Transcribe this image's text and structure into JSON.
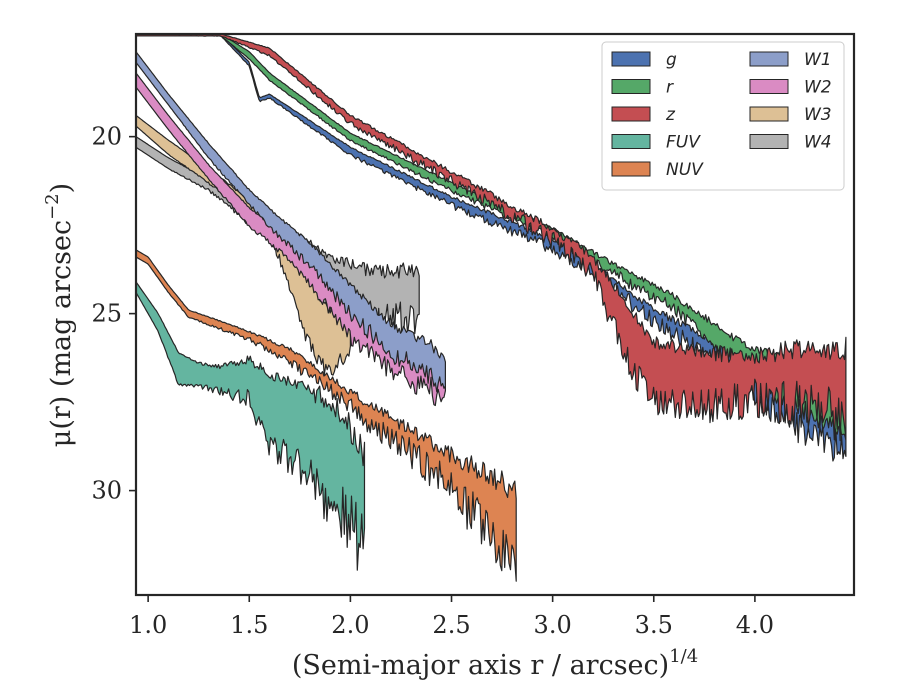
{
  "chart_data": {
    "type": "area",
    "title": "",
    "xlabel": "(Semi-major axis r / arcsec)",
    "xlabel_exponent": "1/4",
    "ylabel": "μ(r) (mag arcsec",
    "ylabel_exponent": "−2",
    "ylabel_close": ")",
    "xlim": [
      0.94,
      4.49
    ],
    "ylim": [
      32.95,
      17.1
    ],
    "y_inverted": true,
    "xticks": [
      1.0,
      1.5,
      2.0,
      2.5,
      3.0,
      3.5,
      4.0
    ],
    "xtick_labels": [
      "1.0",
      "1.5",
      "2.0",
      "2.5",
      "3.0",
      "3.5",
      "4.0"
    ],
    "yticks": [
      20,
      25,
      30
    ],
    "ytick_labels": [
      "20",
      "25",
      "30"
    ],
    "grid": false,
    "legend_position": "top-right",
    "legend_columns": 2,
    "series": [
      {
        "name": "g",
        "color": "#4c72b0",
        "noise": 0.7,
        "x": [
          0.94,
          1.36,
          1.5,
          1.55,
          1.6,
          2.0,
          2.5,
          3.0,
          3.25,
          3.5,
          3.75,
          3.95,
          4.1,
          4.3,
          4.45
        ],
        "y_upper": [
          17.1,
          17.1,
          17.9,
          18.9,
          18.8,
          20.3,
          21.7,
          22.9,
          23.8,
          24.9,
          25.6,
          26.4,
          26.6,
          26.8,
          27.0
        ],
        "y_lower": [
          17.15,
          17.15,
          18.0,
          19.0,
          18.9,
          20.5,
          21.9,
          23.1,
          24.0,
          25.1,
          25.9,
          26.9,
          27.6,
          28.4,
          28.6
        ]
      },
      {
        "name": "r",
        "color": "#55a868",
        "noise": 0.5,
        "x": [
          0.94,
          1.36,
          1.5,
          1.6,
          2.0,
          2.5,
          3.0,
          3.3,
          3.6,
          3.95,
          4.1,
          4.3,
          4.45
        ],
        "y_upper": [
          17.1,
          17.1,
          17.6,
          18.2,
          19.9,
          21.3,
          22.6,
          23.6,
          24.5,
          25.9,
          26.2,
          26.5,
          26.7
        ],
        "y_lower": [
          17.15,
          17.15,
          17.8,
          18.4,
          20.1,
          21.5,
          22.8,
          23.8,
          24.8,
          26.4,
          27.2,
          27.8,
          28.2
        ]
      },
      {
        "name": "z",
        "color": "#c44e52",
        "noise": 1.1,
        "x": [
          0.94,
          1.36,
          1.6,
          2.0,
          2.5,
          3.0,
          3.2,
          3.3,
          3.4,
          3.5,
          3.75,
          4.0,
          4.2,
          4.45
        ],
        "y_upper": [
          17.1,
          17.1,
          17.5,
          19.4,
          21.0,
          22.6,
          23.4,
          24.2,
          25.0,
          25.8,
          26.1,
          26.2,
          26.0,
          26.0
        ],
        "y_lower": [
          17.15,
          17.15,
          17.7,
          19.6,
          21.2,
          22.8,
          23.8,
          25.2,
          26.5,
          27.3,
          27.4,
          27.2,
          27.3,
          27.6
        ]
      },
      {
        "name": "FUV",
        "color": "#64b5a0",
        "noise": 1.6,
        "x": [
          0.94,
          1.05,
          1.15,
          1.25,
          1.35,
          1.5,
          1.6,
          1.7,
          1.8,
          1.9,
          2.0,
          2.07
        ],
        "y_upper": [
          24.1,
          25.0,
          26.1,
          26.4,
          26.5,
          26.3,
          26.7,
          26.9,
          27.2,
          27.5,
          28.2,
          28.9
        ],
        "y_lower": [
          24.4,
          25.5,
          27.0,
          27.0,
          27.1,
          27.3,
          28.6,
          28.9,
          29.3,
          30.0,
          30.7,
          31.0
        ]
      },
      {
        "name": "NUV",
        "color": "#dd8452",
        "noise": 1.2,
        "x": [
          0.94,
          1.0,
          1.1,
          1.2,
          1.5,
          1.7,
          1.9,
          2.1,
          2.3,
          2.5,
          2.7,
          2.82
        ],
        "y_upper": [
          23.2,
          23.4,
          24.2,
          24.9,
          25.5,
          26.0,
          26.8,
          27.6,
          28.3,
          29.0,
          29.6,
          30.0
        ],
        "y_lower": [
          23.4,
          23.6,
          24.4,
          25.1,
          25.7,
          26.3,
          27.1,
          28.0,
          28.8,
          29.7,
          31.0,
          32.2
        ]
      },
      {
        "name": "W1",
        "color": "#8c9ec9",
        "noise": 0.6,
        "x": [
          0.94,
          1.1,
          1.3,
          1.5,
          1.65,
          1.8,
          2.0,
          2.2,
          2.4,
          2.47
        ],
        "y_upper": [
          17.6,
          18.8,
          20.2,
          21.5,
          22.3,
          23.0,
          24.2,
          25.3,
          25.9,
          26.3
        ],
        "y_lower": [
          17.9,
          19.1,
          20.6,
          21.9,
          22.8,
          23.6,
          24.9,
          26.0,
          26.6,
          27.0
        ]
      },
      {
        "name": "W2",
        "color": "#da8bc3",
        "noise": 0.6,
        "x": [
          0.94,
          1.1,
          1.3,
          1.5,
          1.65,
          1.8,
          2.0,
          2.2,
          2.4,
          2.47
        ],
        "y_upper": [
          18.2,
          19.4,
          20.8,
          22.0,
          22.7,
          23.4,
          24.8,
          25.7,
          26.3,
          26.6
        ],
        "y_lower": [
          18.6,
          19.8,
          21.2,
          22.5,
          23.2,
          24.1,
          25.6,
          26.5,
          27.0,
          27.4
        ]
      },
      {
        "name": "W3",
        "color": "#ddc095",
        "noise": 0.4,
        "x": [
          0.94,
          1.1,
          1.3,
          1.5,
          1.6,
          1.65,
          1.72,
          1.78,
          1.85,
          1.9,
          1.95,
          2.0
        ],
        "y_upper": [
          19.4,
          20.1,
          20.9,
          21.8,
          22.3,
          22.9,
          23.5,
          23.8,
          24.6,
          24.9,
          24.9,
          24.6
        ],
        "y_lower": [
          19.7,
          20.5,
          21.3,
          22.1,
          22.8,
          23.4,
          24.6,
          25.6,
          26.3,
          26.6,
          26.2,
          25.8
        ]
      },
      {
        "name": "W4",
        "color": "#b3b3b3",
        "noise": 0.9,
        "x": [
          0.94,
          1.1,
          1.3,
          1.5,
          1.6,
          1.7,
          1.8,
          1.9,
          2.0,
          2.1,
          2.2,
          2.34
        ],
        "y_upper": [
          20.0,
          20.6,
          21.2,
          21.9,
          22.3,
          22.6,
          23.0,
          23.4,
          23.6,
          23.8,
          23.8,
          23.8
        ],
        "y_lower": [
          20.3,
          20.9,
          21.5,
          22.4,
          22.8,
          23.5,
          24.3,
          24.7,
          24.9,
          25.0,
          25.0,
          25.0
        ]
      }
    ],
    "extra_line": {
      "color": "#000000",
      "x": [
        0.94,
        1.36
      ],
      "y": [
        17.1,
        17.1
      ]
    }
  }
}
